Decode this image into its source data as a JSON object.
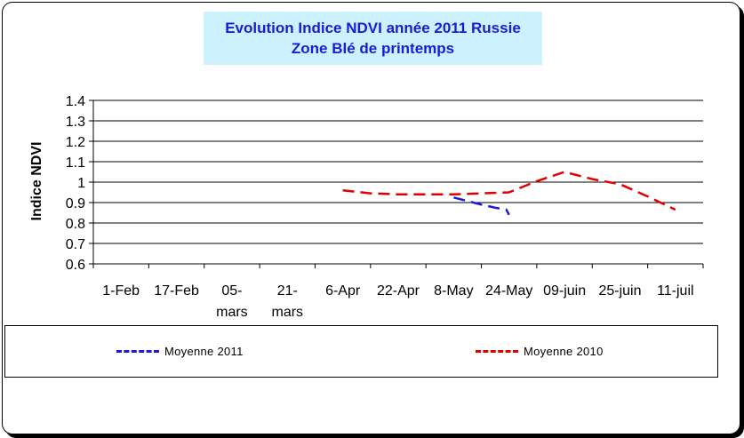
{
  "chart_data": {
    "type": "line",
    "title": "Evolution Indice NDVI année 2011 Russie",
    "subtitle": "Zone Blé de printemps",
    "xlabel": "",
    "ylabel": "Indice NDVI",
    "ylim": [
      0.6,
      1.4
    ],
    "yticks": [
      "1.4",
      "1.3",
      "1.2",
      "1.1",
      "1",
      "0.9",
      "0.8",
      "0.7",
      "0.6"
    ],
    "categories": [
      "1-Feb",
      "17-Feb",
      "05-mars",
      "21-mars",
      "6-Apr",
      "22-Apr",
      "8-May",
      "24-May",
      "09-juin",
      "25-juin",
      "11-juil"
    ],
    "grid": true,
    "legend_position": "bottom",
    "series": [
      {
        "name": "Moyenne 2011",
        "color": "#1a1ad8",
        "dash": "dashed",
        "points": [
          [
            6.5,
            0.925
          ],
          [
            7.0,
            0.89
          ],
          [
            7.25,
            0.875
          ],
          [
            7.45,
            0.865
          ],
          [
            7.5,
            0.84
          ]
        ]
      },
      {
        "name": "Moyenne 2010",
        "color": "#e00000",
        "dash": "dashed",
        "points": [
          [
            4.5,
            0.96
          ],
          [
            5.0,
            0.945
          ],
          [
            5.5,
            0.94
          ],
          [
            6.0,
            0.94
          ],
          [
            6.5,
            0.94
          ],
          [
            7.0,
            0.945
          ],
          [
            7.5,
            0.95
          ],
          [
            8.0,
            1.005
          ],
          [
            8.5,
            1.05
          ],
          [
            9.0,
            1.015
          ],
          [
            9.5,
            0.99
          ],
          [
            10.0,
            0.93
          ],
          [
            10.5,
            0.865
          ]
        ]
      }
    ]
  }
}
